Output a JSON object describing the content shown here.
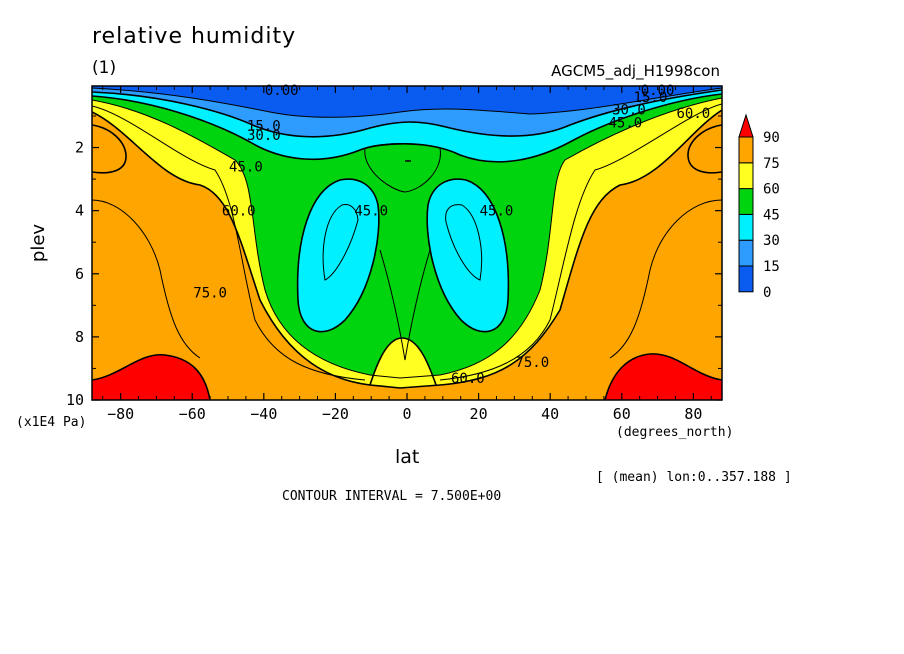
{
  "figure": {
    "title": "relative humidity",
    "subtitle": "(1)",
    "model_label": "AGCM5_adj_H1998con",
    "x_unit": "(degrees_north)",
    "y_unit": "(x1E4 Pa)",
    "mean_note": "[ (mean) lon:0..357.188 ]",
    "contour_interval": "CONTOUR INTERVAL = 7.500E+00"
  },
  "chart_data": {
    "type": "heatmap",
    "title": "relative humidity",
    "xlabel": "lat",
    "ylabel": "plev",
    "x_unit": "(degrees_north)",
    "y_unit": "(x1E4 Pa)",
    "xlim": [
      -88,
      88
    ],
    "ylim": [
      10,
      0.05
    ],
    "y_inverted": true,
    "x_ticks": [
      -80,
      -60,
      -40,
      -20,
      0,
      20,
      40,
      60,
      80
    ],
    "y_ticks": [
      2,
      4,
      6,
      8,
      10
    ],
    "contour_interval": 7.5,
    "color_levels": [
      0,
      15,
      30,
      45,
      60,
      75,
      90
    ],
    "colorbar": {
      "labels": [
        "0",
        "15",
        "30",
        "45",
        "60",
        "75",
        "90"
      ],
      "colors": [
        "#0a5cf0",
        "#2e9bff",
        "#00f0ff",
        "#00d40f",
        "#ffff22",
        "#ffa500",
        "#ff0000"
      ]
    },
    "contour_labels": [
      {
        "text": "0.00",
        "lat": -35,
        "plev": 0.05
      },
      {
        "text": "0.00",
        "lat": 70,
        "plev": 0.05
      },
      {
        "text": "15.0",
        "lat": -40,
        "plev": 1.3
      },
      {
        "text": "15.0",
        "lat": 68,
        "plev": 0.4
      },
      {
        "text": "30.0",
        "lat": -40,
        "plev": 1.6
      },
      {
        "text": "30.0",
        "lat": 62,
        "plev": 0.8
      },
      {
        "text": "45.0",
        "lat": -45,
        "plev": 2.6
      },
      {
        "text": "45.0",
        "lat": 61,
        "plev": 1.2
      },
      {
        "text": "60.0",
        "lat": -47,
        "plev": 4.0
      },
      {
        "text": "60.0",
        "lat": 80,
        "plev": 0.9
      },
      {
        "text": "45.0",
        "lat": -10,
        "plev": 4.0
      },
      {
        "text": "45.0",
        "lat": 25,
        "plev": 4.0
      },
      {
        "text": "75.0",
        "lat": -55,
        "plev": 6.6
      },
      {
        "text": "75.0",
        "lat": 35,
        "plev": 8.8
      },
      {
        "text": "60.0",
        "lat": 17,
        "plev": 9.3
      }
    ],
    "field_regions": [
      {
        "level_min": 75,
        "description": "lower troposphere, both hemispheres"
      },
      {
        "level_min": 90,
        "region": "lat -88..-57, plev 8.5..10"
      },
      {
        "level_min": 90,
        "region": "lat 57..88, plev 8.5..10"
      },
      {
        "level_min": 30,
        "level_max": 45,
        "region": "lat -30..-5, plev 3..8"
      },
      {
        "level_min": 30,
        "level_max": 45,
        "region": "lat 5..30, plev 3..8"
      },
      {
        "level_max": 15,
        "region": "top levels, plev 0..0.8"
      }
    ]
  }
}
